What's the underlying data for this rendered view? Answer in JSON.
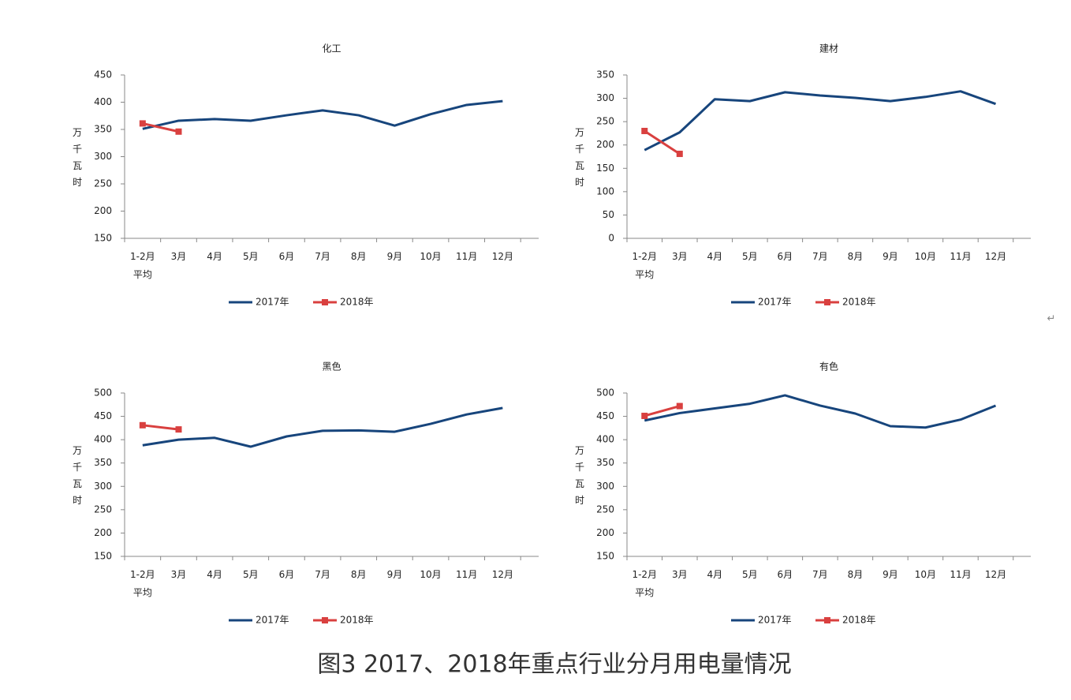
{
  "chart_data": [
    {
      "type": "line",
      "title": "化工",
      "y_label": "万千瓦时",
      "categories": [
        "1-2月\n平均",
        "3月",
        "4月",
        "5月",
        "6月",
        "7月",
        "8月",
        "9月",
        "10月",
        "11月",
        "12月"
      ],
      "ylim": [
        150,
        450
      ],
      "yticks": [
        150,
        200,
        250,
        300,
        350,
        400,
        450
      ],
      "series": [
        {
          "name": "2017年",
          "color": "#17457c",
          "values": [
            351,
            366,
            369,
            366,
            376,
            385,
            376,
            357,
            378,
            395,
            402
          ]
        },
        {
          "name": "2018年",
          "color": "#d9403f",
          "marker": "square",
          "values": [
            361,
            346,
            null,
            null,
            null,
            null,
            null,
            null,
            null,
            null,
            null
          ]
        }
      ],
      "legend": "bottom"
    },
    {
      "type": "line",
      "title": "建材",
      "y_label": "万千瓦时",
      "categories": [
        "1-2月\n平均",
        "3月",
        "4月",
        "5月",
        "6月",
        "7月",
        "8月",
        "9月",
        "10月",
        "11月",
        "12月"
      ],
      "ylim": [
        0,
        350
      ],
      "yticks": [
        0,
        50,
        100,
        150,
        200,
        250,
        300,
        350
      ],
      "series": [
        {
          "name": "2017年",
          "color": "#17457c",
          "values": [
            189,
            227,
            298,
            294,
            313,
            306,
            301,
            294,
            303,
            315,
            288
          ]
        },
        {
          "name": "2018年",
          "color": "#d9403f",
          "marker": "square",
          "values": [
            230,
            181,
            null,
            null,
            null,
            null,
            null,
            null,
            null,
            null,
            null
          ]
        }
      ],
      "legend": "bottom"
    },
    {
      "type": "line",
      "title": "黑色",
      "y_label": "万千瓦时",
      "categories": [
        "1-2月\n平均",
        "3月",
        "4月",
        "5月",
        "6月",
        "7月",
        "8月",
        "9月",
        "10月",
        "11月",
        "12月"
      ],
      "ylim": [
        150,
        500
      ],
      "yticks": [
        150,
        200,
        250,
        300,
        350,
        400,
        450,
        500
      ],
      "series": [
        {
          "name": "2017年",
          "color": "#17457c",
          "values": [
            388,
            400,
            404,
            385,
            407,
            419,
            420,
            417,
            434,
            454,
            468
          ]
        },
        {
          "name": "2018年",
          "color": "#d9403f",
          "marker": "square",
          "values": [
            431,
            422,
            null,
            null,
            null,
            null,
            null,
            null,
            null,
            null,
            null
          ]
        }
      ],
      "legend": "bottom"
    },
    {
      "type": "line",
      "title": "有色",
      "y_label": "万千瓦时",
      "categories": [
        "1-2月\n平均",
        "3月",
        "4月",
        "5月",
        "6月",
        "7月",
        "8月",
        "9月",
        "10月",
        "11月",
        "12月"
      ],
      "ylim": [
        150,
        500
      ],
      "yticks": [
        150,
        200,
        250,
        300,
        350,
        400,
        450,
        500
      ],
      "series": [
        {
          "name": "2017年",
          "color": "#17457c",
          "values": [
            441,
            457,
            467,
            477,
            495,
            473,
            456,
            429,
            426,
            443,
            473
          ]
        },
        {
          "name": "2018年",
          "color": "#d9403f",
          "marker": "square",
          "values": [
            451,
            472,
            null,
            null,
            null,
            null,
            null,
            null,
            null,
            null,
            null
          ]
        }
      ],
      "legend": "bottom"
    }
  ],
  "caption": "图3 2017、2018年重点行业分月用电量情况",
  "paragraph_mark": "↵"
}
